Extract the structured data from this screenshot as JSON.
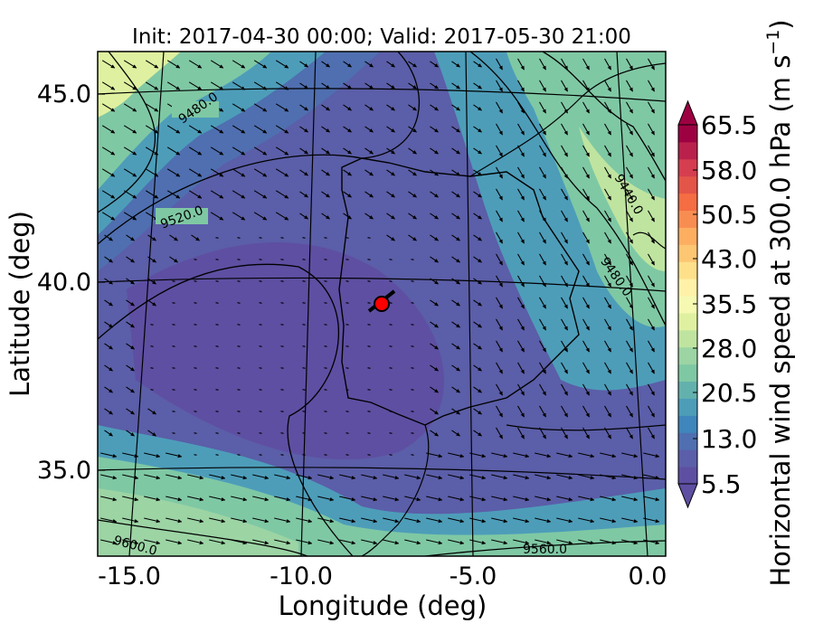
{
  "title": "Init: 2017-04-30 00:00; Valid: 2017-05-30 21:00",
  "x_axis": {
    "label": "Longitude (deg)",
    "ticks": [
      "-15.0",
      "-10.0",
      "-5.0",
      "0.0"
    ]
  },
  "y_axis": {
    "label": "Latitude (deg)",
    "ticks": [
      "45.0",
      "40.0",
      "35.0"
    ]
  },
  "colorbar": {
    "label": "Horizontal wind speed at 300.0 hPa (m s",
    "label_sup": "−1",
    "label_end": ")",
    "ticks": [
      "65.5",
      "58.0",
      "50.5",
      "43.0",
      "35.5",
      "28.0",
      "20.5",
      "13.0",
      "5.5"
    ],
    "colors": [
      "#5e4fa2",
      "#5b5ea8",
      "#4f6fb0",
      "#3f86bc",
      "#4d9db9",
      "#63b1ad",
      "#7fc8a4",
      "#9cd4a4",
      "#bfe4a0",
      "#dff1a0",
      "#f5f9b2",
      "#fff1a8",
      "#fee08b",
      "#fdc672",
      "#fdae61",
      "#f88d52",
      "#f46d43",
      "#e35548",
      "#d53e4f",
      "#b9214c",
      "#9e0142"
    ]
  },
  "contour_labels": [
    "9480.0",
    "9520.0",
    "9440.0",
    "9480.0",
    "9600.0",
    "9560.0"
  ],
  "marker": {
    "label": "red station marker",
    "color": "#ff0000"
  },
  "map_data": {
    "lon_range": [
      -15.9,
      0.3
    ],
    "lat_range": [
      32.7,
      46.0
    ],
    "station": {
      "lon": -7.6,
      "lat": 39.3
    }
  }
}
